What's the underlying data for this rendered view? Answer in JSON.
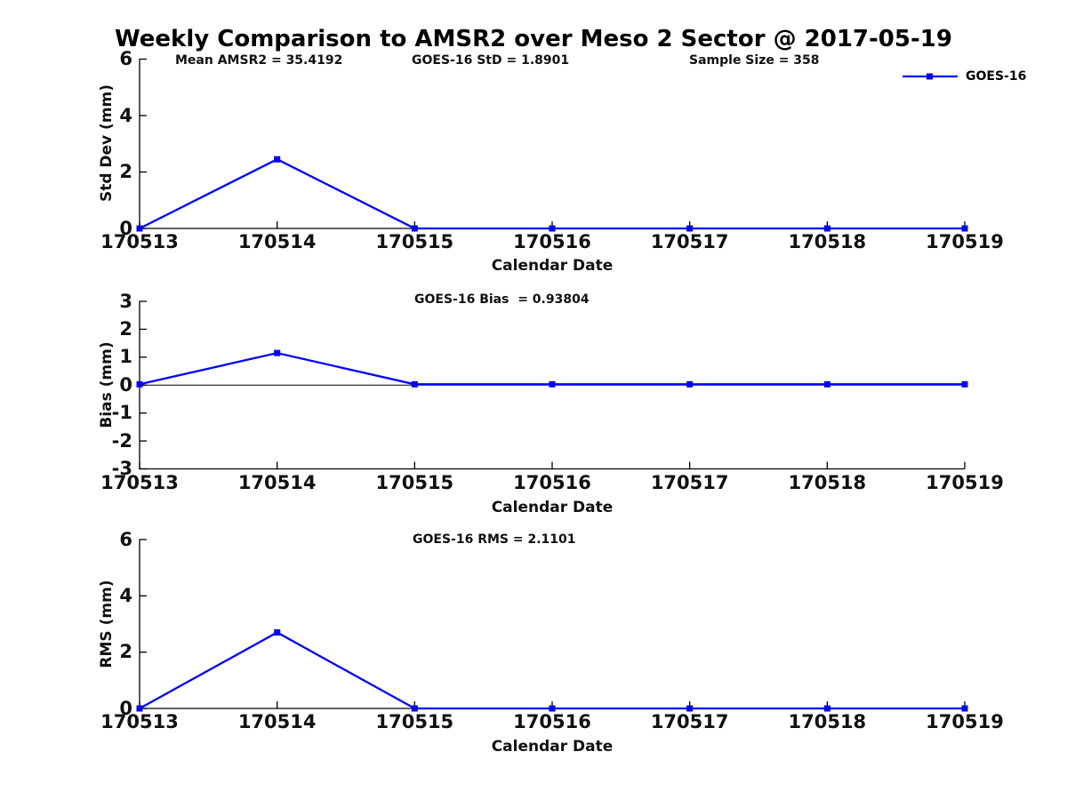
{
  "title": "Weekly Comparison to AMSR2 over Meso 2 Sector @ 2017-05-19",
  "colors": {
    "line": "#0000FF",
    "axis": "#000000",
    "text": "#1a1a1a"
  },
  "legend": {
    "label": "GOES-16",
    "position": "top-right",
    "marker": "filled-square"
  },
  "chart_data": [
    {
      "type": "line",
      "title": "",
      "ylabel": "Std Dev (mm)",
      "xlabel": "Calendar Date",
      "ylim": [
        0,
        6
      ],
      "yticks": [
        0,
        2,
        4,
        6
      ],
      "grid": false,
      "categories": [
        "170513",
        "170514",
        "170515",
        "170516",
        "170517",
        "170518",
        "170519"
      ],
      "series": [
        {
          "name": "GOES-16",
          "color": "#0000FF",
          "marker": "square",
          "values": [
            0,
            2.45,
            0,
            0,
            0,
            0,
            0
          ]
        }
      ],
      "annotations": [
        "Mean AMSR2 = 35.4192",
        "GOES-16 StD = 1.8901",
        "Sample Size = 358"
      ]
    },
    {
      "type": "line",
      "title": "",
      "ylabel": "Bias (mm)",
      "xlabel": "Calendar Date",
      "ylim": [
        -3,
        3
      ],
      "yticks": [
        -3,
        -2,
        -1,
        0,
        1,
        2,
        3
      ],
      "zero_line": true,
      "grid": false,
      "categories": [
        "170513",
        "170514",
        "170515",
        "170516",
        "170517",
        "170518",
        "170519"
      ],
      "series": [
        {
          "name": "GOES-16",
          "color": "#0000FF",
          "marker": "square",
          "values": [
            0.03,
            1.15,
            0.03,
            0.03,
            0.03,
            0.03,
            0.03
          ]
        }
      ],
      "annotations": [
        "GOES-16 Bias  = 0.93804"
      ]
    },
    {
      "type": "line",
      "title": "",
      "ylabel": "RMS (mm)",
      "xlabel": "Calendar Date",
      "ylim": [
        0,
        6
      ],
      "yticks": [
        0,
        2,
        4,
        6
      ],
      "grid": false,
      "categories": [
        "170513",
        "170514",
        "170515",
        "170516",
        "170517",
        "170518",
        "170519"
      ],
      "series": [
        {
          "name": "GOES-16",
          "color": "#0000FF",
          "marker": "square",
          "values": [
            0,
            2.7,
            0,
            0,
            0,
            0,
            0
          ]
        }
      ],
      "annotations": [
        "GOES-16 RMS = 2.1101"
      ]
    }
  ]
}
